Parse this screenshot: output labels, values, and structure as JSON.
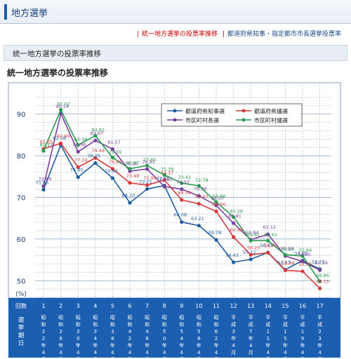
{
  "page": {
    "header_title": "地方選挙",
    "links": [
      "統一地方選挙の投票率推移",
      "都道府県知事・指定都市市長選挙投票率"
    ],
    "section_title": "統一地方選挙の投票率推移",
    "chart_title": "統一地方選挙の投票率推移"
  },
  "chart_data": {
    "type": "line",
    "title": "統一地方選挙の投票率推移",
    "ylabel": "(%)",
    "ylim": [
      45,
      95
    ],
    "yticks": [
      50,
      60,
      70,
      80,
      90
    ],
    "grid": true,
    "legend_position": "top-right",
    "x_header_label": "回数",
    "x_period_label": "選挙期日",
    "categories": [
      "1",
      "2",
      "3",
      "4",
      "5",
      "6",
      "7",
      "8",
      "9",
      "10",
      "11",
      "12",
      "13",
      "14",
      "15",
      "16",
      "17"
    ],
    "dates": [
      "昭和22年4月",
      "昭和26年4月",
      "昭和30年4月",
      "昭和34年4月",
      "昭和38年4月",
      "昭和42年4月",
      "昭和46年4月",
      "昭和50年4月",
      "昭和54年4月",
      "昭和58年4月",
      "昭和62年4月",
      "平成3年4月",
      "平成7年4月",
      "平成11年4月",
      "平成15年4月",
      "平成19年4月",
      "平成23年4月"
    ],
    "series": [
      {
        "name": "都道府県知事選",
        "color": "#1f5c9e",
        "values": [
          71.85,
          82.58,
          74.85,
          78.25,
          74.62,
          68.7,
          72.01,
          72.85,
          64.08,
          63.21,
          59.78,
          54.43,
          55.12,
          56.78,
          52.63,
          54.85,
          52.77
        ]
      },
      {
        "name": "都道府県議選",
        "color": "#d63a3a",
        "values": [
          81.65,
          82.99,
          77.24,
          79.48,
          76.85,
          73.48,
          72.94,
          74.17,
          69.39,
          68.47,
          66.66,
          60.49,
          56.23,
          56.7,
          52.48,
          52.25,
          48.15
        ]
      },
      {
        "name": "市区町村長選",
        "color": "#7b3f9e",
        "values": [
          72.69,
          90.14,
          80.96,
          83.67,
          81.57,
          76.3,
          76.81,
          72.6,
          71.97,
          70.36,
          68.07,
          63.81,
          59.84,
          61.12,
          55.94,
          54.6,
          52.54
        ]
      },
      {
        "name": "市区町村議選",
        "color": "#2a9a4e",
        "values": [
          81.17,
          91.02,
          82.58,
          84.82,
          79.55,
          76.87,
          77.65,
          75.39,
          73.42,
          72.78,
          68.89,
          65.28,
          59.61,
          59.61,
          56.23,
          55.94,
          49.86
        ]
      }
    ]
  }
}
